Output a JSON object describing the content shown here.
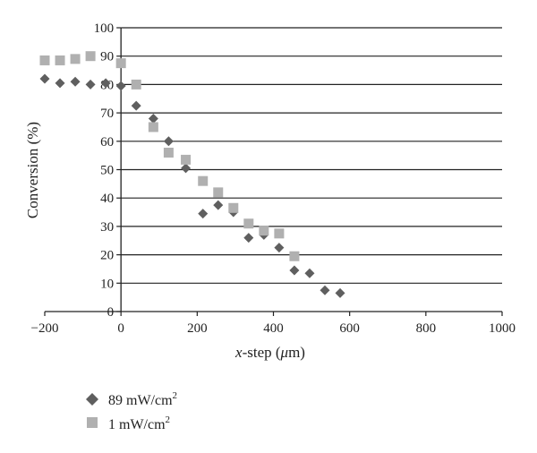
{
  "chart_data": {
    "type": "scatter",
    "xlabel_italic": "x",
    "xlabel_rest": "-step (",
    "xlabel_mu": "μ",
    "xlabel_end": "m)",
    "ylabel": "Conversion (%)",
    "xlim": [
      -200,
      1000
    ],
    "ylim": [
      0,
      100
    ],
    "x_ticks": [
      -200,
      0,
      200,
      400,
      600,
      800,
      1000
    ],
    "y_ticks": [
      0,
      10,
      20,
      30,
      40,
      50,
      60,
      70,
      80,
      90,
      100
    ],
    "x_tick_labels": [
      "−200",
      "0",
      "200",
      "400",
      "600",
      "800",
      "1000"
    ],
    "y_tick_labels": [
      "0",
      "10",
      "20",
      "30",
      "40",
      "50",
      "60",
      "70",
      "80",
      "90",
      "100"
    ],
    "grid": "horizontal",
    "legend_position": "bottom-left",
    "series": [
      {
        "name_main": "89 mW/cm",
        "name_sup": "2",
        "marker": "diamond",
        "color": "#5f5f5f",
        "points": [
          [
            -200,
            82
          ],
          [
            -160,
            80.5
          ],
          [
            -120,
            81
          ],
          [
            -80,
            80
          ],
          [
            -40,
            80.5
          ],
          [
            0,
            79.5
          ],
          [
            40,
            72.5
          ],
          [
            85,
            68
          ],
          [
            125,
            60
          ],
          [
            170,
            50.5
          ],
          [
            215,
            34.5
          ],
          [
            255,
            37.5
          ],
          [
            295,
            35
          ],
          [
            335,
            26
          ],
          [
            375,
            27
          ],
          [
            415,
            22.5
          ],
          [
            455,
            14.5
          ],
          [
            495,
            13.5
          ],
          [
            535,
            7.5
          ],
          [
            575,
            6.5
          ]
        ]
      },
      {
        "name_main": "1 mW/cm",
        "name_sup": "2",
        "marker": "square",
        "color": "#b0b0b0",
        "points": [
          [
            -200,
            88.5
          ],
          [
            -160,
            88.5
          ],
          [
            -120,
            89
          ],
          [
            -80,
            90
          ],
          [
            0,
            87.5
          ],
          [
            40,
            80
          ],
          [
            85,
            65
          ],
          [
            125,
            56
          ],
          [
            170,
            53.5
          ],
          [
            215,
            46
          ],
          [
            255,
            42
          ],
          [
            295,
            36.5
          ],
          [
            335,
            31
          ],
          [
            375,
            28.5
          ],
          [
            415,
            27.5
          ],
          [
            455,
            19.5
          ]
        ]
      }
    ]
  }
}
